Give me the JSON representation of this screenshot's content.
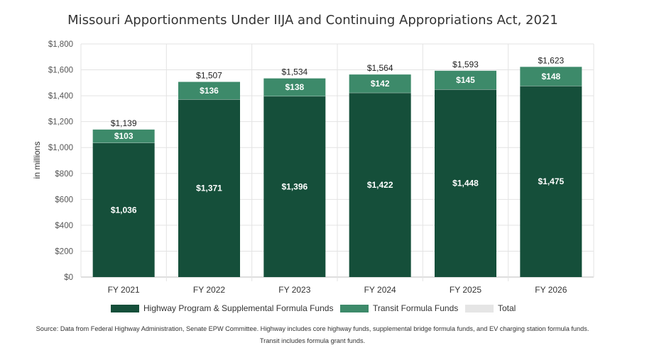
{
  "chart_data": {
    "type": "bar",
    "stacked": true,
    "title": "Missouri Apportionments Under IIJA and Continuing Appropriations Act, 2021",
    "ylabel": "in millions",
    "xlabel": "",
    "ylim": [
      0,
      1800
    ],
    "y_ticks": [
      "$0",
      "$200",
      "$400",
      "$600",
      "$800",
      "$1,000",
      "$1,200",
      "$1,400",
      "$1,600",
      "$1,800"
    ],
    "categories": [
      "FY 2021",
      "FY 2022",
      "FY 2023",
      "FY 2024",
      "FY 2025",
      "FY 2026"
    ],
    "series": [
      {
        "name": "Highway Program & Supplemental Formula Funds",
        "color": "#154f3a",
        "values": [
          1036,
          1371,
          1396,
          1422,
          1448,
          1475
        ],
        "labels": [
          "$1,036",
          "$1,371",
          "$1,396",
          "$1,422",
          "$1,448",
          "$1,475"
        ]
      },
      {
        "name": "Transit Formula Funds",
        "color": "#3d8a6a",
        "values": [
          103,
          136,
          138,
          142,
          145,
          148
        ],
        "labels": [
          "$103",
          "$136",
          "$138",
          "$142",
          "$145",
          "$148"
        ]
      },
      {
        "name": "Total",
        "color": "#e5e5e5",
        "values": [
          1139,
          1507,
          1534,
          1564,
          1593,
          1623
        ],
        "labels": [
          "$1,139",
          "$1,507",
          "$1,534",
          "$1,564",
          "$1,593",
          "$1,623"
        ]
      }
    ],
    "grid": true,
    "legend_position": "bottom"
  },
  "source_note": "Source: Data from Federal Highway Administration, Senate EPW Committee. Highway includes core highway funds, supplemental bridge formula funds, and EV charging station formula funds. Transit includes formula grant funds."
}
